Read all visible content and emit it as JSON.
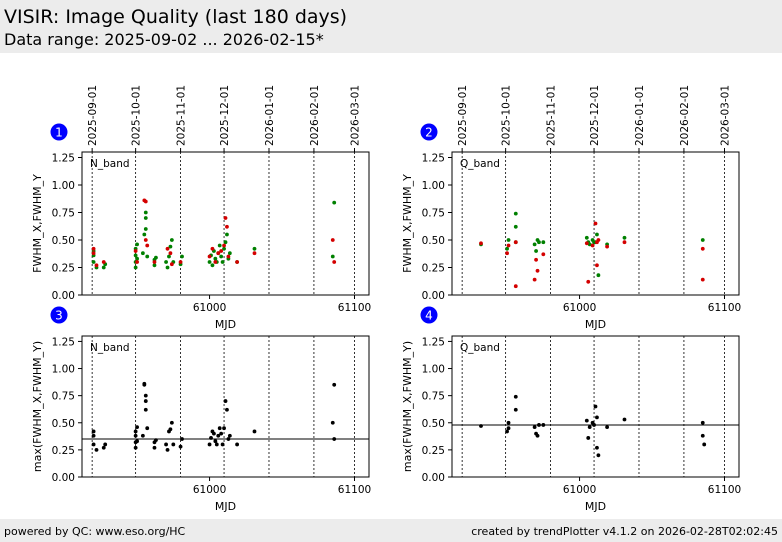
{
  "page": {
    "title": "VISIR: Image Quality (last 180 days)",
    "subtitle": "Data range: 2025-09-02 ... 2026-02-15*",
    "footer_left": "powered by QC: www.eso.org/HC",
    "footer_right": "created by trendPlotter v4.1.2 on 2026-02-28T02:02:45"
  },
  "colors": {
    "header_bg": "#ececec",
    "badge": "#0000ff",
    "red": "#d40000",
    "green": "#008000",
    "black": "#000000"
  },
  "chart_data": [
    {
      "type": "scatter",
      "panel": "1",
      "band_label": "N_band",
      "xlabel": "MJD",
      "ylabel": "FWHM_X,FWHM_Y",
      "xlim": [
        60912,
        61110
      ],
      "ylim": [
        0,
        1.3
      ],
      "xticks": [
        61000,
        61100
      ],
      "yticks": [
        0.0,
        0.25,
        0.5,
        0.75,
        1.0,
        1.25
      ],
      "date_ticks": [
        {
          "label": "2025-09-01",
          "mjd": 60919
        },
        {
          "label": "2025-10-01",
          "mjd": 60949
        },
        {
          "label": "2025-11-01",
          "mjd": 60980
        },
        {
          "label": "2025-12-01",
          "mjd": 61010
        },
        {
          "label": "2026-01-01",
          "mjd": 61041
        },
        {
          "label": "2026-02-01",
          "mjd": 61072
        },
        {
          "label": "2026-03-01",
          "mjd": 61100
        }
      ],
      "series": [
        {
          "name": "FWHM_X",
          "color": "#008000",
          "x": [
            60920,
            60920,
            60920,
            60922,
            60927,
            60928,
            60949,
            60949,
            60949,
            60949,
            60950,
            60950,
            60954,
            60955,
            60956,
            60956,
            60956,
            60957,
            60962,
            60962,
            60963,
            60970,
            60971,
            60972,
            60973,
            60974,
            60975,
            60980,
            60981,
            61000,
            61001,
            61002,
            61003,
            61004,
            61005,
            61006,
            61007,
            61008,
            61009,
            61010,
            61011,
            61012,
            61013,
            61014,
            61019,
            61031,
            61085,
            61086
          ],
          "y": [
            0.3,
            0.36,
            0.4,
            0.25,
            0.25,
            0.28,
            0.25,
            0.3,
            0.36,
            0.42,
            0.33,
            0.46,
            0.38,
            0.55,
            0.6,
            0.7,
            0.75,
            0.35,
            0.27,
            0.32,
            0.34,
            0.3,
            0.25,
            0.35,
            0.44,
            0.5,
            0.3,
            0.28,
            0.35,
            0.3,
            0.36,
            0.27,
            0.4,
            0.33,
            0.3,
            0.38,
            0.45,
            0.35,
            0.3,
            0.42,
            0.48,
            0.55,
            0.33,
            0.38,
            0.3,
            0.42,
            0.35,
            0.84
          ]
        },
        {
          "name": "FWHM_Y",
          "color": "#d40000",
          "x": [
            60920,
            60920,
            60922,
            60927,
            60949,
            60950,
            60955,
            60956,
            60956,
            60957,
            60962,
            60971,
            60973,
            60974,
            60980,
            61000,
            61002,
            61004,
            61006,
            61008,
            61010,
            61011,
            61012,
            61013,
            61019,
            61031,
            61085,
            61086
          ],
          "y": [
            0.38,
            0.42,
            0.27,
            0.3,
            0.4,
            0.3,
            0.86,
            0.85,
            0.5,
            0.45,
            0.3,
            0.42,
            0.38,
            0.28,
            0.3,
            0.35,
            0.42,
            0.3,
            0.38,
            0.4,
            0.45,
            0.7,
            0.62,
            0.35,
            0.3,
            0.38,
            0.5,
            0.3
          ]
        }
      ],
      "reference_line": null
    },
    {
      "type": "scatter",
      "panel": "2",
      "band_label": "Q_band",
      "xlabel": "MJD",
      "ylabel": "FWHM_X,FWHM_Y",
      "xlim": [
        60912,
        61110
      ],
      "ylim": [
        0,
        1.3
      ],
      "xticks": [
        61000,
        61100
      ],
      "yticks": [
        0.0,
        0.25,
        0.5,
        0.75,
        1.0,
        1.25
      ],
      "date_ticks": [
        {
          "label": "2025-09-01",
          "mjd": 60919
        },
        {
          "label": "2025-10-01",
          "mjd": 60949
        },
        {
          "label": "2025-11-01",
          "mjd": 60980
        },
        {
          "label": "2025-12-01",
          "mjd": 61010
        },
        {
          "label": "2026-01-01",
          "mjd": 61041
        },
        {
          "label": "2026-02-01",
          "mjd": 61072
        },
        {
          "label": "2026-03-01",
          "mjd": 61100
        }
      ],
      "series": [
        {
          "name": "FWHM_X",
          "color": "#008000",
          "x": [
            60932,
            60950,
            60951,
            60956,
            60956,
            60956,
            60969,
            60970,
            60971,
            60972,
            60975,
            61005,
            61006,
            61007,
            61009,
            61010,
            61011,
            61012,
            61013,
            61019,
            61031,
            61085
          ],
          "y": [
            0.46,
            0.42,
            0.5,
            0.74,
            0.62,
            0.48,
            0.46,
            0.4,
            0.5,
            0.48,
            0.48,
            0.52,
            0.48,
            0.46,
            0.5,
            0.48,
            0.48,
            0.55,
            0.18,
            0.46,
            0.52,
            0.5
          ],
          "mark": "dot"
        },
        {
          "name": "FWHM_Y",
          "color": "#d40000",
          "x": [
            60932,
            60950,
            60951,
            60956,
            60956,
            60969,
            60970,
            60971,
            60975,
            61005,
            61006,
            61009,
            61011,
            61012,
            61012,
            61013,
            61019,
            61031,
            61085,
            61085
          ],
          "y": [
            0.47,
            0.38,
            0.45,
            0.08,
            0.48,
            0.14,
            0.32,
            0.22,
            0.37,
            0.47,
            0.12,
            0.45,
            0.65,
            0.27,
            0.48,
            0.5,
            0.44,
            0.48,
            0.14,
            0.42
          ]
        }
      ],
      "reference_line": null
    },
    {
      "type": "scatter",
      "panel": "3",
      "band_label": "N_band",
      "xlabel": "MJD",
      "ylabel": "max(FWHM_X,FWHM_Y)",
      "xlim": [
        60912,
        61110
      ],
      "ylim": [
        0,
        1.3
      ],
      "xticks": [
        61000,
        61100
      ],
      "yticks": [
        0.0,
        0.25,
        0.5,
        0.75,
        1.0,
        1.25
      ],
      "date_ticks": [
        {
          "label": "2025-09-01",
          "mjd": 60919
        },
        {
          "label": "2025-10-01",
          "mjd": 60949
        },
        {
          "label": "2025-11-01",
          "mjd": 60980
        },
        {
          "label": "2025-12-01",
          "mjd": 61010
        },
        {
          "label": "2026-01-01",
          "mjd": 61041
        },
        {
          "label": "2026-02-01",
          "mjd": 61072
        },
        {
          "label": "2026-03-01",
          "mjd": 61100
        }
      ],
      "series": [
        {
          "name": "max",
          "color": "#000000",
          "x": [
            60920,
            60920,
            60920,
            60922,
            60927,
            60928,
            60949,
            60949,
            60949,
            60949,
            60950,
            60950,
            60954,
            60955,
            60955,
            60956,
            60956,
            60956,
            60957,
            60962,
            60962,
            60963,
            60970,
            60971,
            60972,
            60973,
            60974,
            60975,
            60980,
            60981,
            61000,
            61001,
            61002,
            61003,
            61004,
            61005,
            61006,
            61007,
            61008,
            61009,
            61010,
            61011,
            61012,
            61013,
            61014,
            61019,
            61031,
            61085,
            61086,
            61086
          ],
          "y": [
            0.3,
            0.38,
            0.42,
            0.25,
            0.27,
            0.3,
            0.27,
            0.32,
            0.38,
            0.42,
            0.33,
            0.46,
            0.38,
            0.86,
            0.85,
            0.62,
            0.7,
            0.75,
            0.45,
            0.27,
            0.32,
            0.34,
            0.3,
            0.25,
            0.42,
            0.44,
            0.5,
            0.3,
            0.28,
            0.35,
            0.3,
            0.36,
            0.42,
            0.4,
            0.33,
            0.3,
            0.38,
            0.45,
            0.4,
            0.3,
            0.45,
            0.7,
            0.62,
            0.35,
            0.38,
            0.3,
            0.42,
            0.5,
            0.35,
            0.85
          ]
        }
      ],
      "reference_line": 0.35
    },
    {
      "type": "scatter",
      "panel": "4",
      "band_label": "Q_band",
      "xlabel": "MJD",
      "ylabel": "max(FWHM_X,FWHM_Y)",
      "xlim": [
        60912,
        61110
      ],
      "ylim": [
        0,
        1.3
      ],
      "xticks": [
        61000,
        61100
      ],
      "yticks": [
        0.0,
        0.25,
        0.5,
        0.75,
        1.0,
        1.25
      ],
      "date_ticks": [
        {
          "label": "2025-09-01",
          "mjd": 60919
        },
        {
          "label": "2025-10-01",
          "mjd": 60949
        },
        {
          "label": "2025-11-01",
          "mjd": 60980
        },
        {
          "label": "2025-12-01",
          "mjd": 61010
        },
        {
          "label": "2026-01-01",
          "mjd": 61041
        },
        {
          "label": "2026-02-01",
          "mjd": 61072
        },
        {
          "label": "2026-03-01",
          "mjd": 61100
        }
      ],
      "series": [
        {
          "name": "max",
          "color": "#000000",
          "x": [
            60932,
            60950,
            60951,
            60951,
            60956,
            60956,
            60969,
            60970,
            60971,
            60972,
            60975,
            61005,
            61006,
            61007,
            61009,
            61010,
            61011,
            61012,
            61012,
            61013,
            61019,
            61031,
            61085,
            61085,
            61086
          ],
          "y": [
            0.47,
            0.42,
            0.45,
            0.5,
            0.74,
            0.62,
            0.46,
            0.4,
            0.38,
            0.48,
            0.48,
            0.52,
            0.36,
            0.46,
            0.5,
            0.48,
            0.65,
            0.55,
            0.27,
            0.2,
            0.46,
            0.53,
            0.5,
            0.38,
            0.3
          ]
        }
      ],
      "reference_line": 0.48
    }
  ]
}
